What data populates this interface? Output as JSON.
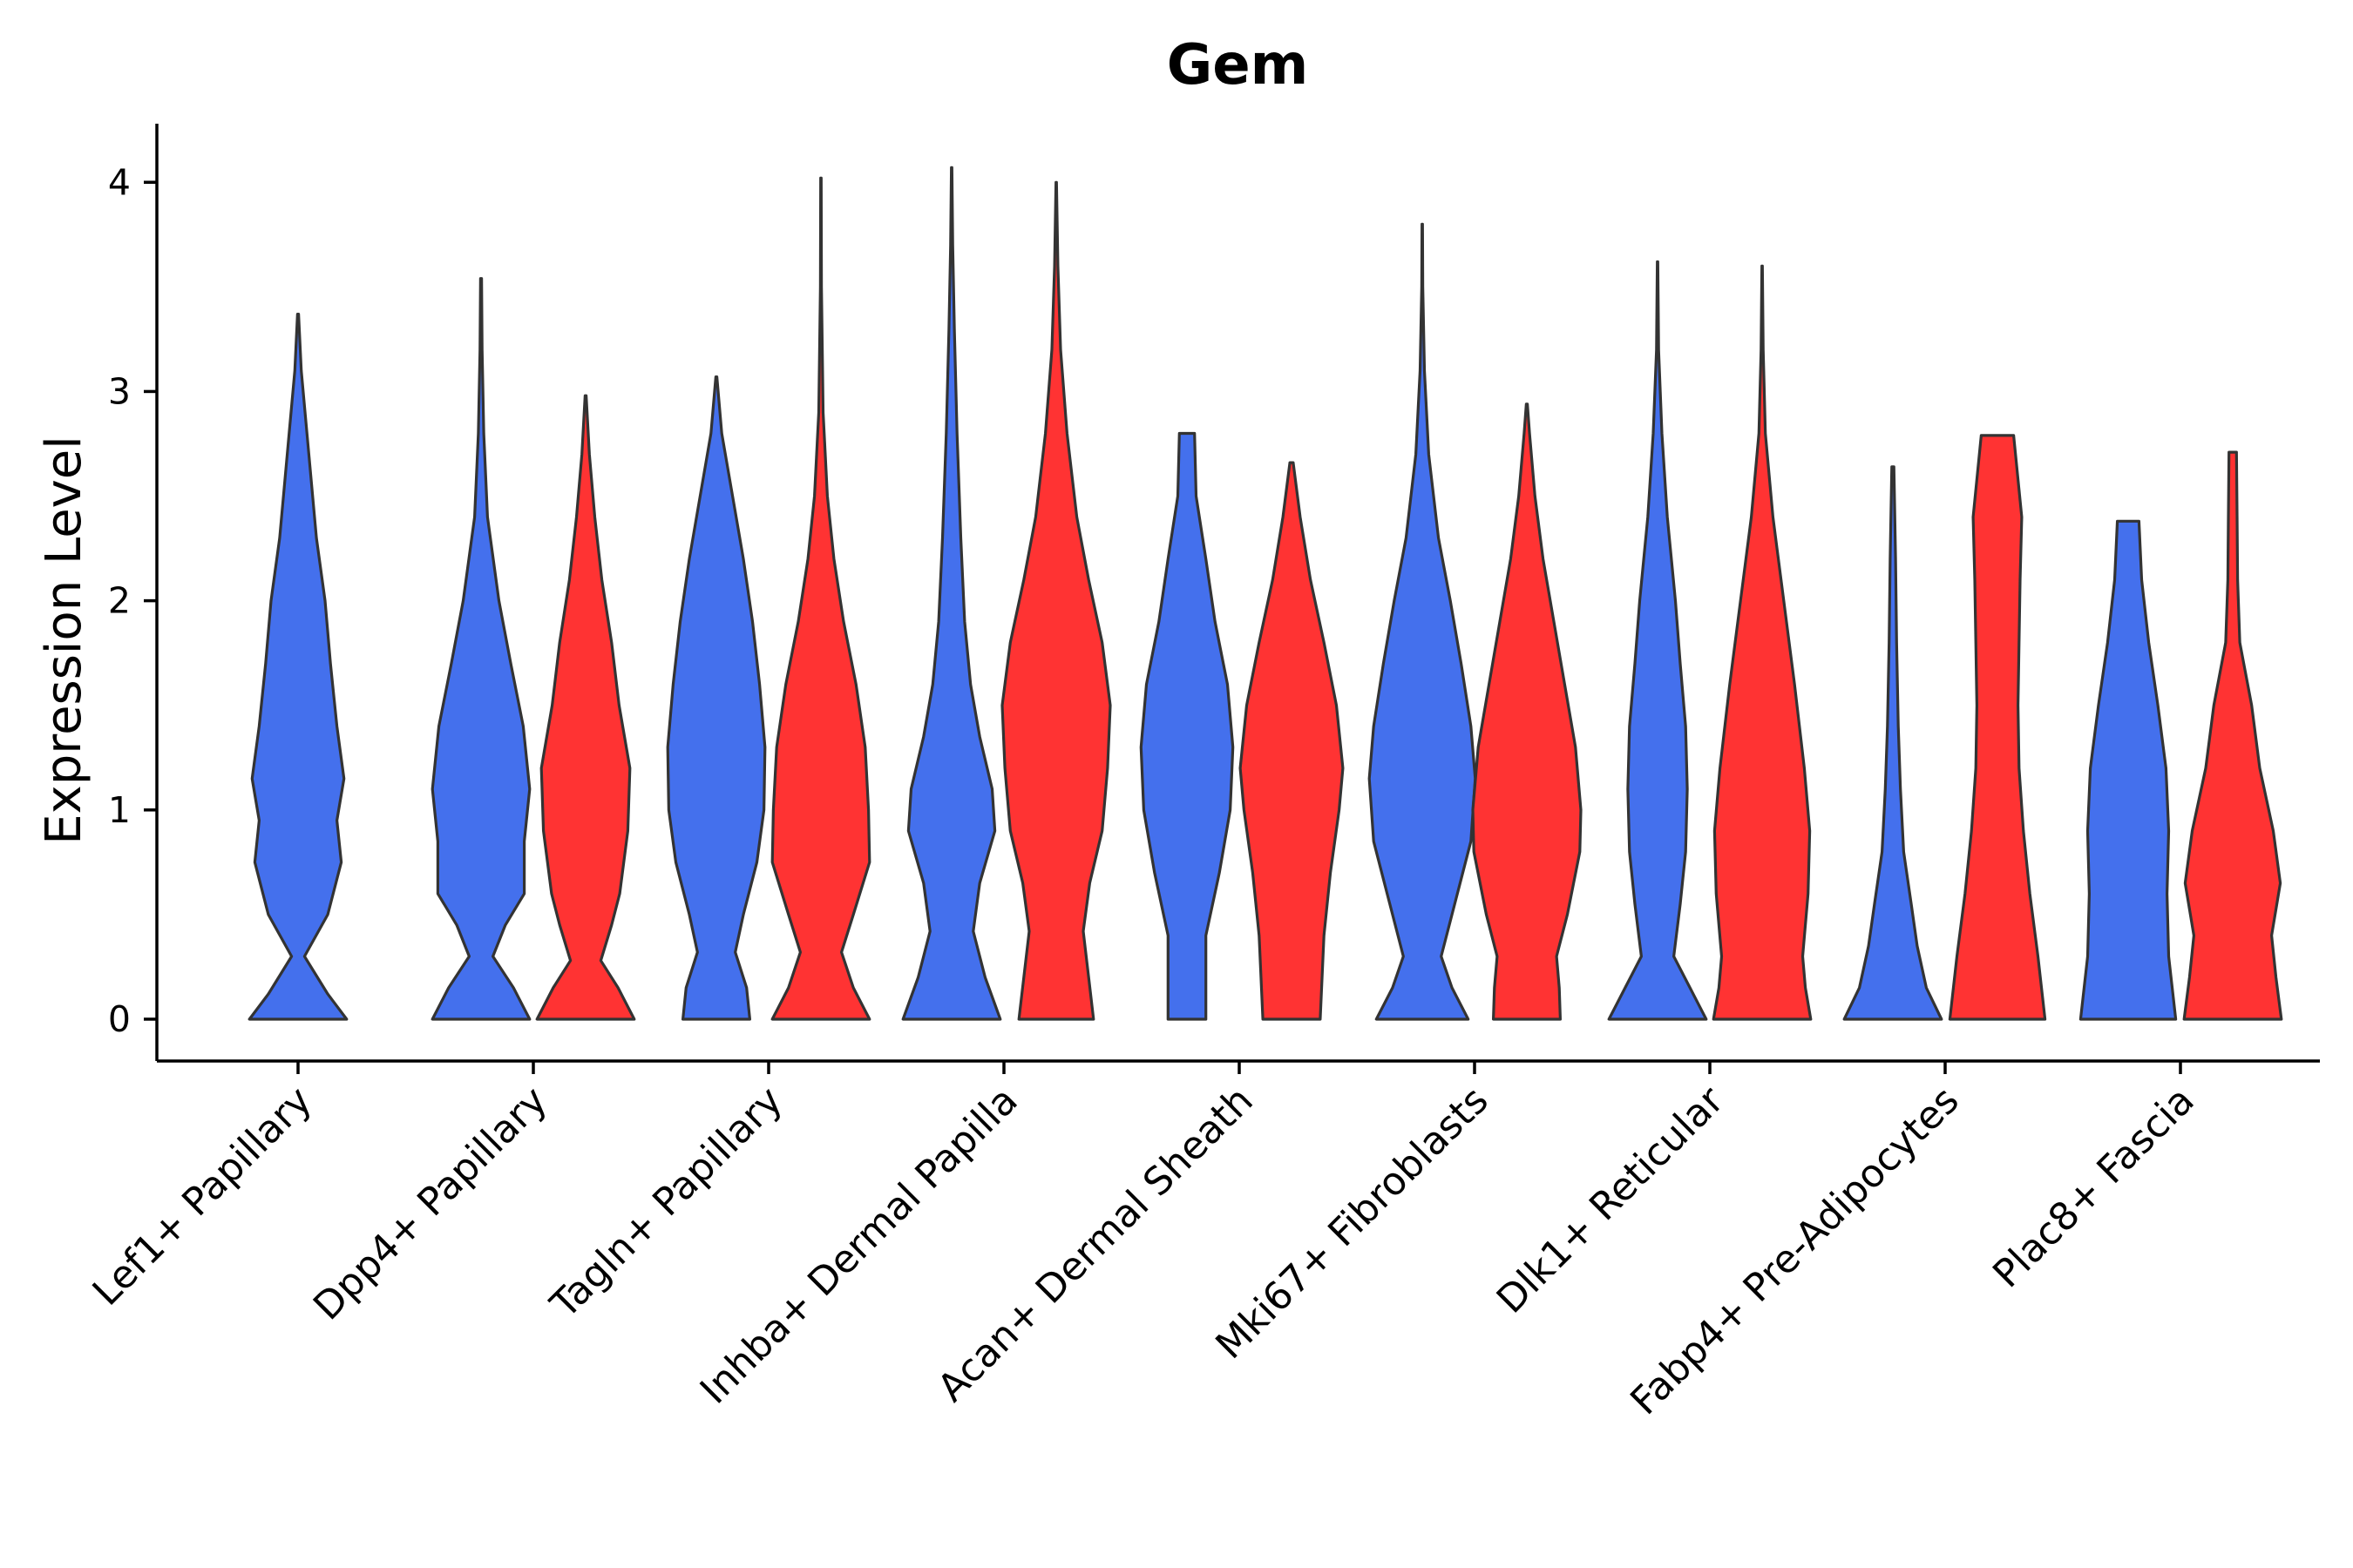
{
  "chart_data": {
    "type": "violin",
    "title": "Gem",
    "xlabel": "",
    "ylabel": "Expression Level",
    "ylim": [
      -0.2,
      4.28
    ],
    "yticks": [
      0,
      1,
      2,
      3,
      4
    ],
    "colors": {
      "blue": "#4470ED",
      "red": "#FF3333"
    },
    "categories": [
      {
        "label": "Lef1+ Papillary",
        "violins": [
          {
            "color": "blue",
            "max": 3.37,
            "shape": [
              [
                0,
                0.9
              ],
              [
                0.12,
                0.55
              ],
              [
                0.3,
                0.12
              ],
              [
                0.5,
                0.55
              ],
              [
                0.75,
                0.8
              ],
              [
                0.95,
                0.72
              ],
              [
                1.15,
                0.85
              ],
              [
                1.4,
                0.72
              ],
              [
                1.7,
                0.6
              ],
              [
                2.0,
                0.5
              ],
              [
                2.3,
                0.34
              ],
              [
                2.7,
                0.2
              ],
              [
                3.1,
                0.06
              ],
              [
                3.37,
                0.01
              ]
            ]
          }
        ]
      },
      {
        "label": "Dpp4+ Papillary",
        "violins": [
          {
            "color": "blue",
            "max": 3.54,
            "shape": [
              [
                0,
                0.9
              ],
              [
                0.15,
                0.6
              ],
              [
                0.3,
                0.22
              ],
              [
                0.45,
                0.45
              ],
              [
                0.6,
                0.8
              ],
              [
                0.85,
                0.8
              ],
              [
                1.1,
                0.9
              ],
              [
                1.4,
                0.78
              ],
              [
                1.7,
                0.55
              ],
              [
                2.0,
                0.33
              ],
              [
                2.4,
                0.12
              ],
              [
                2.8,
                0.05
              ],
              [
                3.2,
                0.02
              ],
              [
                3.54,
                0.01
              ]
            ]
          },
          {
            "color": "red",
            "max": 2.98,
            "shape": [
              [
                0,
                0.9
              ],
              [
                0.15,
                0.6
              ],
              [
                0.28,
                0.28
              ],
              [
                0.45,
                0.48
              ],
              [
                0.6,
                0.63
              ],
              [
                0.9,
                0.78
              ],
              [
                1.2,
                0.82
              ],
              [
                1.5,
                0.62
              ],
              [
                1.8,
                0.48
              ],
              [
                2.1,
                0.3
              ],
              [
                2.4,
                0.17
              ],
              [
                2.7,
                0.07
              ],
              [
                2.98,
                0.01
              ]
            ]
          }
        ]
      },
      {
        "label": "Tagln+ Papillary",
        "violins": [
          {
            "color": "blue",
            "max": 3.07,
            "shape": [
              [
                0,
                0.62
              ],
              [
                0.15,
                0.56
              ],
              [
                0.32,
                0.35
              ],
              [
                0.5,
                0.5
              ],
              [
                0.75,
                0.75
              ],
              [
                1.0,
                0.88
              ],
              [
                1.3,
                0.9
              ],
              [
                1.6,
                0.8
              ],
              [
                1.9,
                0.67
              ],
              [
                2.2,
                0.5
              ],
              [
                2.5,
                0.3
              ],
              [
                2.8,
                0.1
              ],
              [
                3.07,
                0.01
              ]
            ]
          },
          {
            "color": "red",
            "max": 4.02,
            "shape": [
              [
                0,
                0.9
              ],
              [
                0.15,
                0.6
              ],
              [
                0.32,
                0.38
              ],
              [
                0.5,
                0.6
              ],
              [
                0.75,
                0.9
              ],
              [
                1.0,
                0.88
              ],
              [
                1.3,
                0.82
              ],
              [
                1.6,
                0.65
              ],
              [
                1.9,
                0.42
              ],
              [
                2.2,
                0.24
              ],
              [
                2.5,
                0.12
              ],
              [
                2.9,
                0.04
              ],
              [
                3.5,
                0.01
              ],
              [
                4.02,
                0.005
              ]
            ]
          }
        ]
      },
      {
        "label": "Inhba+ Dermal Papilla",
        "violins": [
          {
            "color": "blue",
            "max": 4.07,
            "shape": [
              [
                0,
                0.9
              ],
              [
                0.2,
                0.62
              ],
              [
                0.42,
                0.4
              ],
              [
                0.65,
                0.52
              ],
              [
                0.9,
                0.8
              ],
              [
                1.1,
                0.75
              ],
              [
                1.35,
                0.52
              ],
              [
                1.6,
                0.35
              ],
              [
                1.9,
                0.24
              ],
              [
                2.3,
                0.17
              ],
              [
                2.8,
                0.1
              ],
              [
                3.3,
                0.05
              ],
              [
                3.7,
                0.02
              ],
              [
                4.07,
                0.005
              ]
            ]
          },
          {
            "color": "red",
            "max": 4.0,
            "shape": [
              [
                0,
                0.69
              ],
              [
                0.2,
                0.6
              ],
              [
                0.42,
                0.5
              ],
              [
                0.65,
                0.62
              ],
              [
                0.9,
                0.85
              ],
              [
                1.2,
                0.95
              ],
              [
                1.5,
                1.0
              ],
              [
                1.8,
                0.85
              ],
              [
                2.1,
                0.6
              ],
              [
                2.4,
                0.38
              ],
              [
                2.8,
                0.2
              ],
              [
                3.2,
                0.08
              ],
              [
                3.6,
                0.03
              ],
              [
                4.0,
                0.005
              ]
            ]
          }
        ]
      },
      {
        "label": "Acan+ Dermal Sheath",
        "violins": [
          {
            "color": "blue",
            "max": 2.8,
            "shape": [
              [
                0,
                0.35
              ],
              [
                0.4,
                0.35
              ],
              [
                0.7,
                0.6
              ],
              [
                1.0,
                0.8
              ],
              [
                1.3,
                0.85
              ],
              [
                1.6,
                0.75
              ],
              [
                1.9,
                0.52
              ],
              [
                2.2,
                0.35
              ],
              [
                2.5,
                0.17
              ],
              [
                2.8,
                0.14
              ]
            ]
          },
          {
            "color": "red",
            "max": 2.66,
            "shape": [
              [
                0,
                0.53
              ],
              [
                0.4,
                0.6
              ],
              [
                0.7,
                0.72
              ],
              [
                1.0,
                0.88
              ],
              [
                1.2,
                0.95
              ],
              [
                1.5,
                0.83
              ],
              [
                1.8,
                0.6
              ],
              [
                2.1,
                0.35
              ],
              [
                2.4,
                0.16
              ],
              [
                2.66,
                0.03
              ]
            ]
          }
        ]
      },
      {
        "label": "Mki67+ Fibroblasts",
        "violins": [
          {
            "color": "blue",
            "max": 3.8,
            "shape": [
              [
                0,
                0.85
              ],
              [
                0.15,
                0.55
              ],
              [
                0.3,
                0.35
              ],
              [
                0.55,
                0.6
              ],
              [
                0.85,
                0.9
              ],
              [
                1.15,
                0.98
              ],
              [
                1.4,
                0.9
              ],
              [
                1.7,
                0.72
              ],
              [
                2.0,
                0.52
              ],
              [
                2.3,
                0.3
              ],
              [
                2.7,
                0.12
              ],
              [
                3.1,
                0.04
              ],
              [
                3.5,
                0.01
              ],
              [
                3.8,
                0.005
              ]
            ]
          },
          {
            "color": "red",
            "max": 2.94,
            "shape": [
              [
                0,
                0.62
              ],
              [
                0.15,
                0.6
              ],
              [
                0.3,
                0.55
              ],
              [
                0.5,
                0.75
              ],
              [
                0.8,
                0.98
              ],
              [
                1.0,
                1.0
              ],
              [
                1.3,
                0.9
              ],
              [
                1.6,
                0.7
              ],
              [
                1.9,
                0.5
              ],
              [
                2.2,
                0.3
              ],
              [
                2.5,
                0.15
              ],
              [
                2.8,
                0.05
              ],
              [
                2.94,
                0.01
              ]
            ]
          }
        ]
      },
      {
        "label": "Dlk1+ Reticular",
        "violins": [
          {
            "color": "blue",
            "max": 3.62,
            "shape": [
              [
                0,
                0.9
              ],
              [
                0.15,
                0.6
              ],
              [
                0.3,
                0.3
              ],
              [
                0.55,
                0.42
              ],
              [
                0.8,
                0.52
              ],
              [
                1.1,
                0.55
              ],
              [
                1.4,
                0.52
              ],
              [
                1.7,
                0.42
              ],
              [
                2.0,
                0.33
              ],
              [
                2.4,
                0.18
              ],
              [
                2.8,
                0.08
              ],
              [
                3.2,
                0.02
              ],
              [
                3.62,
                0.005
              ]
            ]
          },
          {
            "color": "red",
            "max": 3.6,
            "shape": [
              [
                0,
                0.9
              ],
              [
                0.15,
                0.8
              ],
              [
                0.3,
                0.75
              ],
              [
                0.6,
                0.85
              ],
              [
                0.9,
                0.88
              ],
              [
                1.2,
                0.78
              ],
              [
                1.6,
                0.6
              ],
              [
                2.0,
                0.4
              ],
              [
                2.4,
                0.2
              ],
              [
                2.8,
                0.06
              ],
              [
                3.2,
                0.02
              ],
              [
                3.6,
                0.005
              ]
            ]
          }
        ]
      },
      {
        "label": "Fabp4+ Pre-Adipocytes",
        "violins": [
          {
            "color": "blue",
            "max": 2.64,
            "shape": [
              [
                0,
                0.9
              ],
              [
                0.15,
                0.62
              ],
              [
                0.35,
                0.45
              ],
              [
                0.55,
                0.34
              ],
              [
                0.8,
                0.2
              ],
              [
                1.1,
                0.14
              ],
              [
                1.4,
                0.1
              ],
              [
                1.8,
                0.07
              ],
              [
                2.2,
                0.05
              ],
              [
                2.64,
                0.02
              ]
            ]
          },
          {
            "color": "red",
            "max": 2.79,
            "shape": [
              [
                0,
                0.88
              ],
              [
                0.3,
                0.75
              ],
              [
                0.6,
                0.6
              ],
              [
                0.9,
                0.48
              ],
              [
                1.2,
                0.4
              ],
              [
                1.5,
                0.38
              ],
              [
                1.8,
                0.4
              ],
              [
                2.1,
                0.42
              ],
              [
                2.4,
                0.45
              ],
              [
                2.79,
                0.3
              ]
            ]
          }
        ]
      },
      {
        "label": "Plac8+ Fascia",
        "violins": [
          {
            "color": "blue",
            "max": 2.38,
            "shape": [
              [
                0,
                0.88
              ],
              [
                0.3,
                0.75
              ],
              [
                0.6,
                0.72
              ],
              [
                0.9,
                0.75
              ],
              [
                1.2,
                0.7
              ],
              [
                1.5,
                0.55
              ],
              [
                1.8,
                0.38
              ],
              [
                2.1,
                0.25
              ],
              [
                2.38,
                0.2
              ]
            ]
          },
          {
            "color": "red",
            "max": 2.71,
            "shape": [
              [
                0,
                0.9
              ],
              [
                0.2,
                0.8
              ],
              [
                0.4,
                0.72
              ],
              [
                0.65,
                0.88
              ],
              [
                0.9,
                0.75
              ],
              [
                1.2,
                0.5
              ],
              [
                1.5,
                0.35
              ],
              [
                1.8,
                0.13
              ],
              [
                2.1,
                0.09
              ],
              [
                2.4,
                0.08
              ],
              [
                2.71,
                0.07
              ]
            ]
          }
        ]
      }
    ]
  }
}
